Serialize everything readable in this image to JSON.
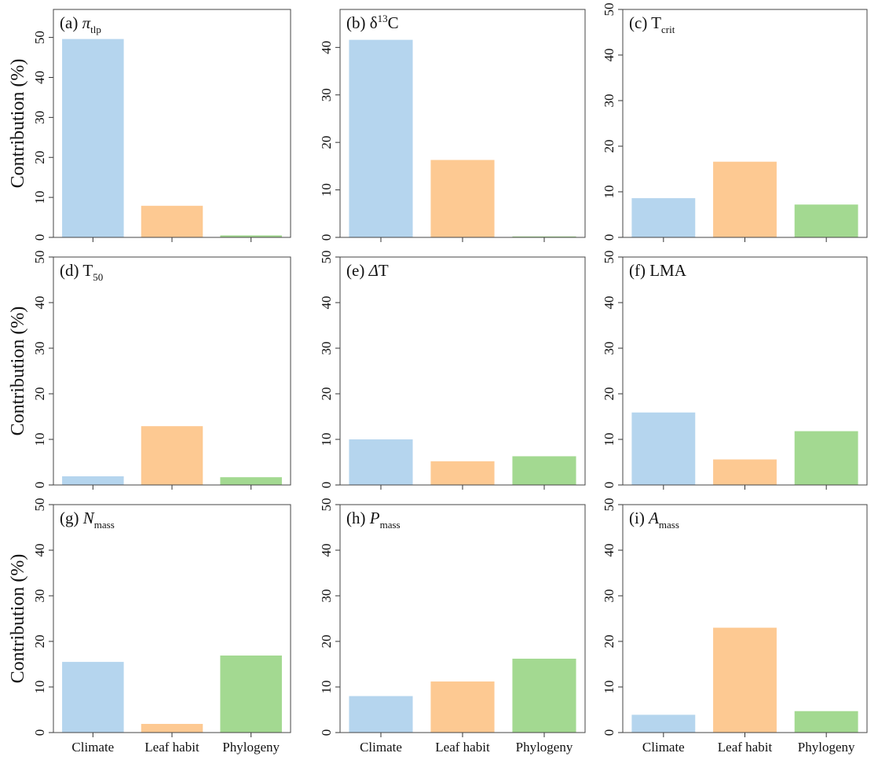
{
  "chart_data": [
    {
      "type": "bar",
      "title": [
        {
          "text": "(a) "
        },
        {
          "text": "π",
          "italic": true
        },
        {
          "text": "tlp",
          "sub": true
        }
      ],
      "ylabel": "Contribution (%)",
      "values": [
        49.6,
        7.9,
        0.5
      ],
      "colors": [
        "#b5d5ee",
        "#fdc992",
        "#a3d991"
      ],
      "ylim": [
        0,
        57
      ],
      "yticks": [
        0,
        10,
        20,
        30,
        40,
        50
      ]
    },
    {
      "type": "bar",
      "title": [
        {
          "text": "(b) δ"
        },
        {
          "text": "13",
          "sup": true
        },
        {
          "text": "C"
        }
      ],
      "values": [
        41.6,
        16.3,
        0.2
      ],
      "colors": [
        "#b5d5ee",
        "#fdc992",
        "#a3d991"
      ],
      "ylim": [
        0,
        48
      ],
      "yticks": [
        0,
        10,
        20,
        30,
        40
      ]
    },
    {
      "type": "bar",
      "title": [
        {
          "text": "(c) T"
        },
        {
          "text": "crit",
          "sub": true
        }
      ],
      "values": [
        8.6,
        16.6,
        7.2
      ],
      "colors": [
        "#b5d5ee",
        "#fdc992",
        "#a3d991"
      ],
      "ylim": [
        0,
        50
      ],
      "yticks": [
        0,
        10,
        20,
        30,
        40,
        50
      ]
    },
    {
      "type": "bar",
      "title": [
        {
          "text": "(d) T"
        },
        {
          "text": "50",
          "sub": true
        }
      ],
      "ylabel": "Contribution (%)",
      "values": [
        1.9,
        12.9,
        1.7
      ],
      "colors": [
        "#b5d5ee",
        "#fdc992",
        "#a3d991"
      ],
      "ylim": [
        0,
        50
      ],
      "yticks": [
        0,
        10,
        20,
        30,
        40,
        50
      ]
    },
    {
      "type": "bar",
      "title": [
        {
          "text": "(e) "
        },
        {
          "text": "Δ",
          "italic": true
        },
        {
          "text": "T"
        }
      ],
      "values": [
        10.0,
        5.2,
        6.3
      ],
      "colors": [
        "#b5d5ee",
        "#fdc992",
        "#a3d991"
      ],
      "ylim": [
        0,
        50
      ],
      "yticks": [
        0,
        10,
        20,
        30,
        40,
        50
      ]
    },
    {
      "type": "bar",
      "title": [
        {
          "text": "(f) LMA"
        }
      ],
      "values": [
        15.9,
        5.6,
        11.8
      ],
      "colors": [
        "#b5d5ee",
        "#fdc992",
        "#a3d991"
      ],
      "ylim": [
        0,
        50
      ],
      "yticks": [
        0,
        10,
        20,
        30,
        40,
        50
      ]
    },
    {
      "type": "bar",
      "title": [
        {
          "text": "(g) "
        },
        {
          "text": "N",
          "italic": true
        },
        {
          "text": "mass",
          "sub": true
        }
      ],
      "ylabel": "Contribution (%)",
      "categories": [
        "Climate",
        "Leaf habit",
        "Phylogeny"
      ],
      "values": [
        15.5,
        1.9,
        16.9
      ],
      "colors": [
        "#b5d5ee",
        "#fdc992",
        "#a3d991"
      ],
      "ylim": [
        0,
        50
      ],
      "yticks": [
        0,
        10,
        20,
        30,
        40,
        50
      ]
    },
    {
      "type": "bar",
      "title": [
        {
          "text": "(h) "
        },
        {
          "text": "P",
          "italic": true
        },
        {
          "text": "mass",
          "sub": true
        }
      ],
      "categories": [
        "Climate",
        "Leaf habit",
        "Phylogeny"
      ],
      "values": [
        8.0,
        11.2,
        16.2
      ],
      "colors": [
        "#b5d5ee",
        "#fdc992",
        "#a3d991"
      ],
      "ylim": [
        0,
        50
      ],
      "yticks": [
        0,
        10,
        20,
        30,
        40,
        50
      ]
    },
    {
      "type": "bar",
      "title": [
        {
          "text": "(i) "
        },
        {
          "text": "A",
          "italic": true
        },
        {
          "text": "mass",
          "sub": true
        }
      ],
      "categories": [
        "Climate",
        "Leaf habit",
        "Phylogeny"
      ],
      "values": [
        3.9,
        23.0,
        4.7
      ],
      "colors": [
        "#b5d5ee",
        "#fdc992",
        "#a3d991"
      ],
      "ylim": [
        0,
        50
      ],
      "yticks": [
        0,
        10,
        20,
        30,
        40,
        50
      ]
    }
  ]
}
